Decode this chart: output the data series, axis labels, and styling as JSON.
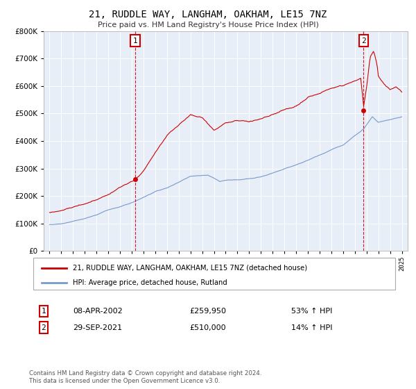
{
  "title": "21, RUDDLE WAY, LANGHAM, OAKHAM, LE15 7NZ",
  "subtitle": "Price paid vs. HM Land Registry's House Price Index (HPI)",
  "hpi_label": "HPI: Average price, detached house, Rutland",
  "property_label": "21, RUDDLE WAY, LANGHAM, OAKHAM, LE15 7NZ (detached house)",
  "property_color": "#cc0000",
  "hpi_color": "#7799cc",
  "background_color": "#e8eef8",
  "transaction1_date": "08-APR-2002",
  "transaction1_price": "£259,950",
  "transaction1_hpi": "53% ↑ HPI",
  "transaction2_date": "29-SEP-2021",
  "transaction2_price": "£510,000",
  "transaction2_hpi": "14% ↑ HPI",
  "ylim": [
    0,
    800000
  ],
  "xlim_start": 1994.5,
  "xlim_end": 2025.5,
  "footer": "Contains HM Land Registry data © Crown copyright and database right 2024.\nThis data is licensed under the Open Government Licence v3.0.",
  "t1_x": 2002.29,
  "t1_y": 259950,
  "t2_x": 2021.75,
  "t2_y": 510000
}
